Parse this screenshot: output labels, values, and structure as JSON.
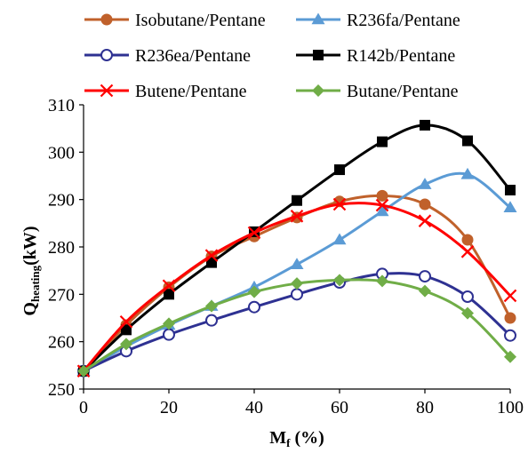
{
  "chart_data": {
    "type": "line",
    "title": "",
    "xlabel": "M",
    "xlabel_sub": "f",
    "xlabel_suffix": " (%)",
    "ylabel": "Q",
    "ylabel_sub": "heating",
    "ylabel_suffix": "(kW)",
    "xlim": [
      0,
      100
    ],
    "ylim": [
      250,
      310
    ],
    "x_ticks": [
      0,
      20,
      40,
      60,
      80,
      100
    ],
    "y_ticks": [
      250,
      260,
      270,
      280,
      290,
      300,
      310
    ],
    "grid": false,
    "legend_placement": "top",
    "series": [
      {
        "name": "Isobutane/Pentane",
        "color": "#C0612B",
        "marker": "circle-filled",
        "x": [
          0,
          10,
          20,
          30,
          40,
          50,
          60,
          70,
          80,
          90,
          100
        ],
        "y": [
          253.8,
          263.5,
          271.5,
          278,
          282.2,
          286.2,
          289.6,
          290.8,
          289,
          281.5,
          265
        ]
      },
      {
        "name": "R236fa/Pentane",
        "color": "#5B9BD5",
        "marker": "triangle",
        "x": [
          0,
          10,
          20,
          30,
          40,
          50,
          60,
          70,
          80,
          90,
          100
        ],
        "y": [
          253.8,
          259,
          263.5,
          267.5,
          271.5,
          276.3,
          281.5,
          287.5,
          293.2,
          295.3,
          288.3
        ]
      },
      {
        "name": "R236ea/Pentane",
        "color": "#2E3192",
        "marker": "circle-open",
        "x": [
          0,
          10,
          20,
          30,
          40,
          50,
          60,
          70,
          80,
          90,
          100
        ],
        "y": [
          253.8,
          258,
          261.5,
          264.5,
          267.3,
          270,
          272.5,
          274.3,
          273.8,
          269.5,
          261.3
        ]
      },
      {
        "name": "R142b/Pentane",
        "color": "#000000",
        "marker": "square",
        "x": [
          0,
          10,
          20,
          30,
          40,
          50,
          60,
          70,
          80,
          90,
          100
        ],
        "y": [
          253.8,
          262.5,
          270,
          276.7,
          283.2,
          289.8,
          296.3,
          302.2,
          305.7,
          302.4,
          292
        ]
      },
      {
        "name": "Butene/Pentane",
        "color": "#FF0000",
        "marker": "x",
        "x": [
          0,
          10,
          20,
          30,
          40,
          50,
          60,
          70,
          80,
          90,
          100
        ],
        "y": [
          253.8,
          264.2,
          271.8,
          278.2,
          283,
          286.5,
          289,
          288.8,
          285.5,
          279,
          269.7
        ]
      },
      {
        "name": "Butane/Pentane",
        "color": "#70AD47",
        "marker": "diamond",
        "x": [
          0,
          10,
          20,
          30,
          40,
          50,
          60,
          70,
          80,
          90,
          100
        ],
        "y": [
          253.8,
          259.5,
          263.8,
          267.5,
          270.5,
          272.3,
          273,
          272.8,
          270.7,
          266,
          256.8
        ]
      }
    ]
  }
}
